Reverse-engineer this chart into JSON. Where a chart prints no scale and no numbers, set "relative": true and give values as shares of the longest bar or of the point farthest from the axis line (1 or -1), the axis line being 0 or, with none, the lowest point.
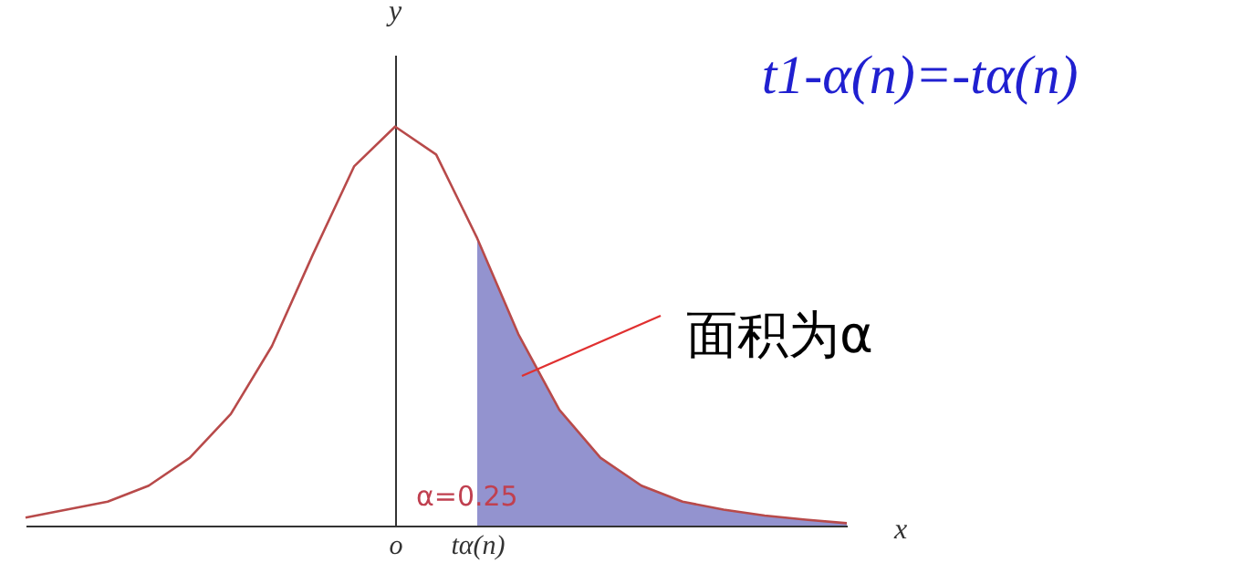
{
  "chart_data": {
    "type": "line",
    "relative": true,
    "xlabel": "x",
    "ylabel": "y",
    "categories": [
      null,
      null,
      null,
      null,
      null,
      null,
      null,
      null,
      null,
      "o",
      null,
      "tα(n)",
      null,
      null,
      null,
      null,
      null,
      null,
      null,
      null,
      null
    ],
    "series": [
      {
        "color": "#b84a4a",
        "values": [
          0.02,
          0.04,
          0.06,
          0.1,
          0.17,
          0.28,
          0.45,
          0.68,
          0.9,
          1,
          0.93,
          0.72,
          0.48,
          0.29,
          0.17,
          0.1,
          0.06,
          0.04,
          0.025,
          0.015,
          0.006
        ]
      },
      {
        "type": "area",
        "color": "#3a3aa8",
        "values": [
          null,
          null,
          null,
          null,
          null,
          null,
          null,
          null,
          null,
          null,
          null,
          0.72,
          0.48,
          0.29,
          0.17,
          0.1,
          0.06,
          0.04,
          0.025,
          0.015,
          0.006
        ]
      }
    ],
    "annotations": [
      "t1-α(n)=-tα(n)",
      "面积为α",
      "α=0.25"
    ]
  }
}
